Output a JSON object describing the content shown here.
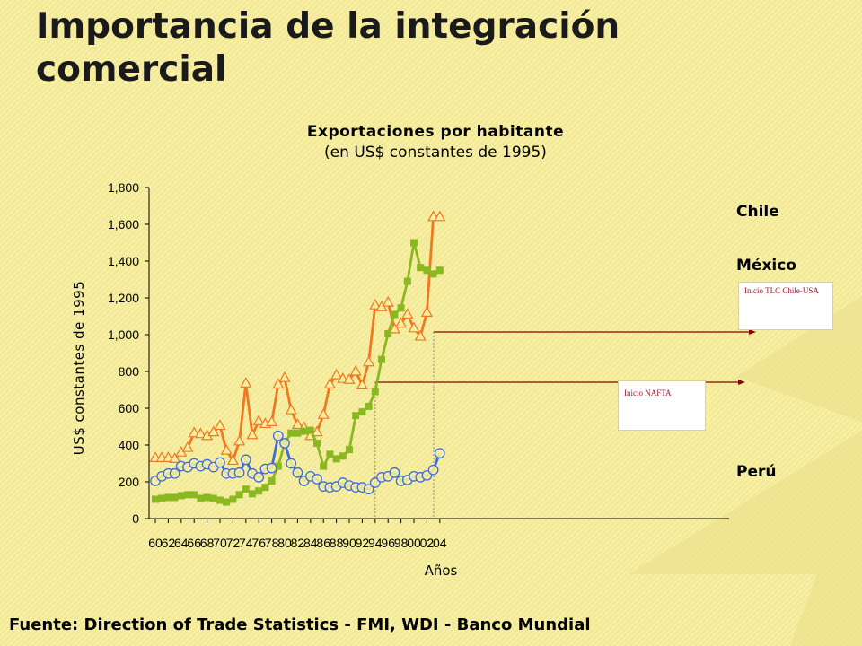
{
  "slide": {
    "title": "Importancia de la integración comercial",
    "source": "Fuente: Direction of Trade Statistics - FMI, WDI - Banco Mundial"
  },
  "annotations": {
    "tlc": "Inicio TLC Chile-USA",
    "nafta": "Inicio NAFTA"
  },
  "colors": {
    "background": "#f6eea0",
    "chile": "#f07820",
    "mexico": "#8ab820",
    "peru": "#3c6cdc",
    "arrow": "#8b0000"
  },
  "chart_data": {
    "type": "line",
    "title": "Exportaciones por habitante",
    "subtitle": "(en US$ constantes de 1995)",
    "xlabel": "Años",
    "ylabel": "US$ constantes de 1995",
    "ylim": [
      0,
      1800
    ],
    "yticks": [
      "0",
      "200",
      "400",
      "600",
      "800",
      "1,000",
      "1,200",
      "1,400",
      "1,600",
      "1,800"
    ],
    "xticks": [
      "60",
      "62",
      "64",
      "66",
      "68",
      "70",
      "72",
      "74",
      "76",
      "78",
      "80",
      "82",
      "84",
      "86",
      "88",
      "90",
      "92",
      "94",
      "96",
      "98",
      "00",
      "02",
      "04"
    ],
    "x": [
      1960,
      1961,
      1962,
      1963,
      1964,
      1965,
      1966,
      1967,
      1968,
      1969,
      1970,
      1971,
      1972,
      1973,
      1974,
      1975,
      1976,
      1977,
      1978,
      1979,
      1980,
      1981,
      1982,
      1983,
      1984,
      1985,
      1986,
      1987,
      1988,
      1989,
      1990,
      1991,
      1992,
      1993,
      1994,
      1995,
      1996,
      1997,
      1998,
      1999,
      2000,
      2001,
      2002,
      2003,
      2004
    ],
    "grid": false,
    "legend": "right",
    "series": [
      {
        "name": "Chile",
        "marker": "triangle",
        "values": [
          330,
          330,
          330,
          325,
          360,
          385,
          465,
          460,
          450,
          470,
          505,
          370,
          315,
          420,
          735,
          455,
          530,
          515,
          525,
          730,
          765,
          590,
          510,
          495,
          450,
          470,
          565,
          730,
          780,
          760,
          755,
          800,
          725,
          850,
          1160,
          1150,
          1175,
          1030,
          1060,
          1110,
          1035,
          990,
          1120,
          1640,
          1640
        ]
      },
      {
        "name": "México",
        "marker": "square",
        "values": [
          105,
          110,
          115,
          115,
          125,
          130,
          130,
          110,
          115,
          110,
          100,
          90,
          105,
          130,
          160,
          135,
          150,
          170,
          205,
          285,
          410,
          465,
          465,
          475,
          480,
          410,
          285,
          350,
          325,
          340,
          375,
          560,
          580,
          610,
          690,
          865,
          1005,
          1110,
          1145,
          1290,
          1500,
          1365,
          1350,
          1330,
          1350
        ]
      },
      {
        "name": "Perú",
        "marker": "circle",
        "values": [
          205,
          230,
          245,
          245,
          285,
          280,
          300,
          285,
          295,
          280,
          305,
          245,
          245,
          250,
          320,
          245,
          225,
          270,
          275,
          450,
          410,
          300,
          250,
          205,
          230,
          215,
          175,
          170,
          175,
          195,
          180,
          170,
          170,
          160,
          195,
          225,
          230,
          250,
          205,
          210,
          230,
          225,
          235,
          265,
          355
        ]
      }
    ]
  }
}
